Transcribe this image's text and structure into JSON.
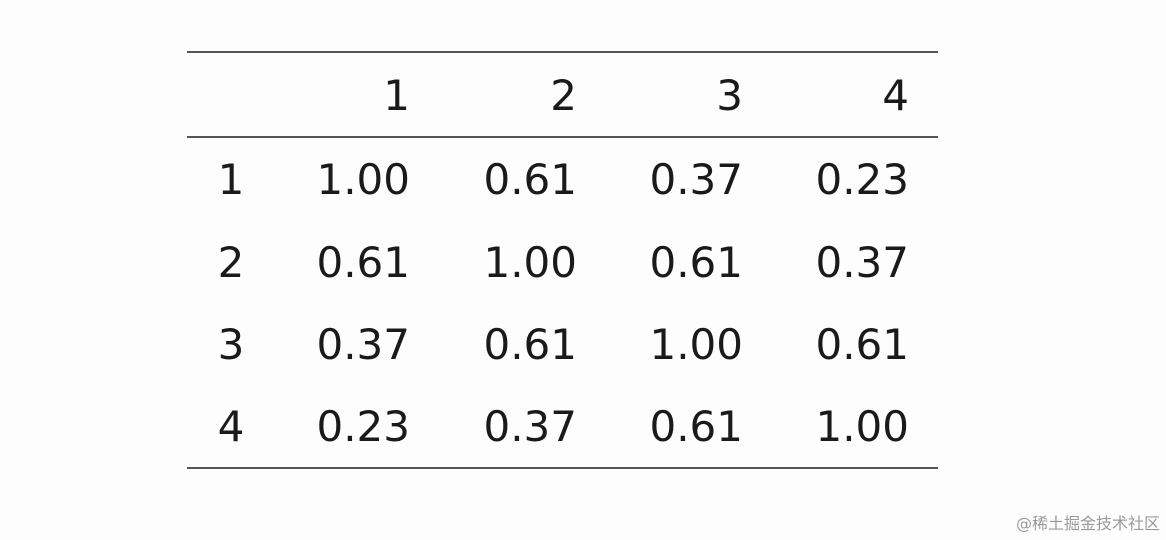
{
  "table": {
    "columns": [
      "1",
      "2",
      "3",
      "4"
    ],
    "rows": [
      {
        "label": "1",
        "cells": [
          "1.00",
          "0.61",
          "0.37",
          "0.23"
        ]
      },
      {
        "label": "2",
        "cells": [
          "0.61",
          "1.00",
          "0.61",
          "0.37"
        ]
      },
      {
        "label": "3",
        "cells": [
          "0.37",
          "0.61",
          "1.00",
          "0.61"
        ]
      },
      {
        "label": "4",
        "cells": [
          "0.23",
          "0.37",
          "0.61",
          "1.00"
        ]
      }
    ]
  },
  "watermark": "@稀土掘金技术社区"
}
